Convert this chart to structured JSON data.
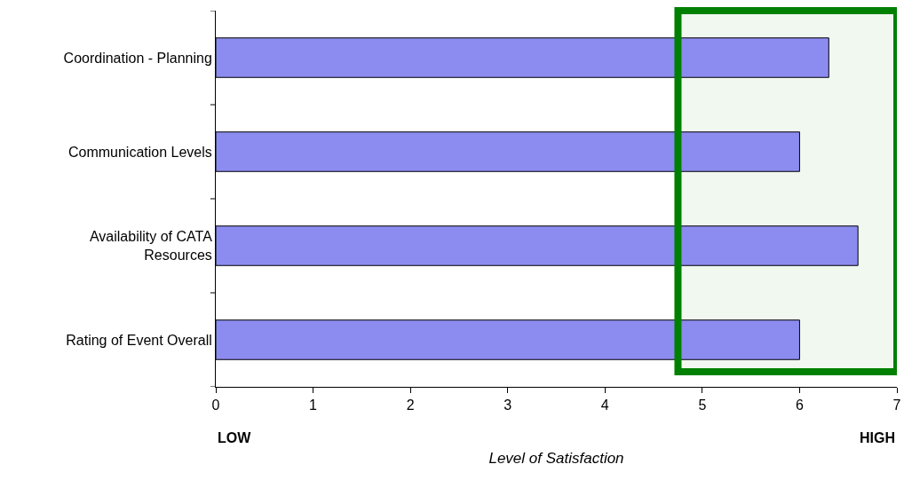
{
  "chart_data": {
    "type": "bar",
    "orientation": "horizontal",
    "categories": [
      "Coordination - Planning",
      "Communication Levels",
      "Availability of CATA Resources",
      "Rating of Event Overall"
    ],
    "values": [
      6.3,
      6.0,
      6.6,
      6.0
    ],
    "color": "#8c8cf0",
    "xlim": [
      0,
      7
    ],
    "xticks": [
      0,
      1,
      2,
      3,
      4,
      5,
      6,
      7
    ],
    "xlabel": "Level of Satisfaction",
    "annotations": [
      "LOW",
      "HIGH"
    ],
    "bands": [
      {
        "axis": "x",
        "from": 4.75,
        "to": 7,
        "color": "#008000"
      }
    ]
  }
}
